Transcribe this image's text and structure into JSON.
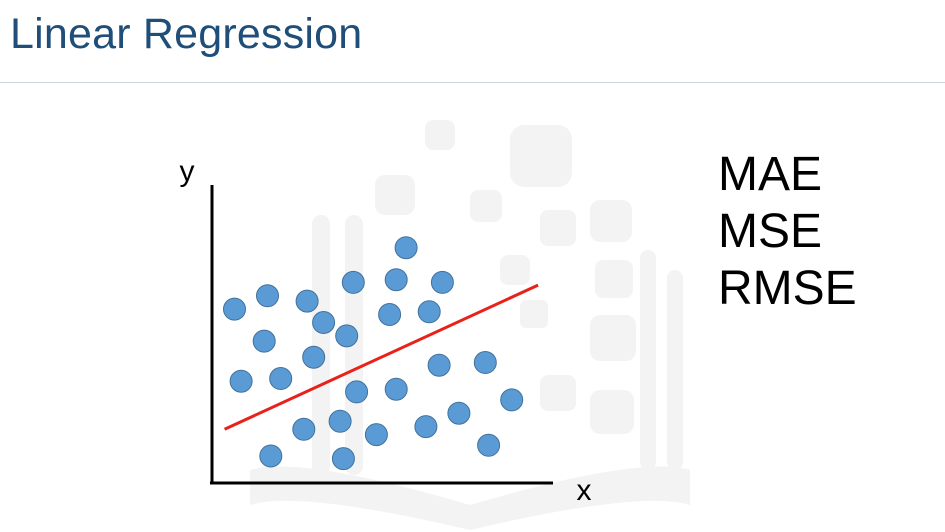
{
  "slide": {
    "title": "Linear Regression",
    "metrics": [
      "MAE",
      "MSE",
      "RMSE"
    ]
  },
  "colors": {
    "title": "#1f4e79",
    "point_fill": "#5b9bd5",
    "point_stroke": "#41719c",
    "line": "#e8221b",
    "axis": "#000000"
  },
  "chart_data": {
    "type": "scatter",
    "xlabel": "x",
    "ylabel": "y",
    "xlim": [
      0,
      100
    ],
    "ylim": [
      0,
      100
    ],
    "points": [
      {
        "x": 5,
        "y": 61
      },
      {
        "x": 15,
        "y": 66
      },
      {
        "x": 27,
        "y": 64
      },
      {
        "x": 41,
        "y": 71
      },
      {
        "x": 54,
        "y": 72
      },
      {
        "x": 57,
        "y": 84
      },
      {
        "x": 68,
        "y": 71
      },
      {
        "x": 32,
        "y": 56
      },
      {
        "x": 39,
        "y": 51
      },
      {
        "x": 52,
        "y": 59
      },
      {
        "x": 64,
        "y": 60
      },
      {
        "x": 14,
        "y": 49
      },
      {
        "x": 29,
        "y": 43
      },
      {
        "x": 7,
        "y": 34
      },
      {
        "x": 19,
        "y": 35
      },
      {
        "x": 42,
        "y": 30
      },
      {
        "x": 54,
        "y": 31
      },
      {
        "x": 67,
        "y": 40
      },
      {
        "x": 81,
        "y": 41
      },
      {
        "x": 89,
        "y": 27
      },
      {
        "x": 73,
        "y": 22
      },
      {
        "x": 26,
        "y": 16
      },
      {
        "x": 37,
        "y": 19
      },
      {
        "x": 48,
        "y": 14
      },
      {
        "x": 63,
        "y": 17
      },
      {
        "x": 16,
        "y": 6
      },
      {
        "x": 38,
        "y": 5
      },
      {
        "x": 82,
        "y": 10
      }
    ],
    "regression_line": {
      "x": [
        2,
        97
      ],
      "y": [
        16,
        70
      ]
    }
  }
}
